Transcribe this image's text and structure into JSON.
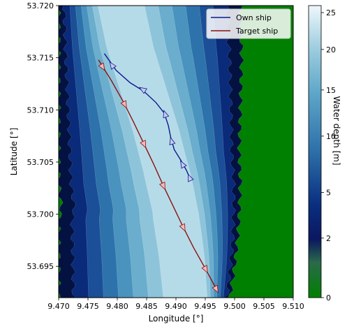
{
  "chart_data": {
    "type": "line",
    "xlabel": "Longitude [°]",
    "ylabel": "Latitude [°]",
    "xlim": [
      9.47,
      9.51
    ],
    "ylim": [
      53.692,
      53.72
    ],
    "xticks": [
      "9.470",
      "9.475",
      "9.480",
      "9.485",
      "9.490",
      "9.495",
      "9.500",
      "9.505",
      "9.510"
    ],
    "yticks": [
      "53.695",
      "53.700",
      "53.705",
      "53.710",
      "53.715",
      "53.720"
    ],
    "legend_position": "top-right",
    "series": [
      {
        "name": "Own ship",
        "color": "#0a1a8c",
        "marker_color": "#c8c8f0",
        "points": [
          [
            9.4778,
            53.7154
          ],
          [
            9.4798,
            53.7138
          ],
          [
            9.4822,
            53.7126
          ],
          [
            9.4845,
            53.7118
          ],
          [
            9.4866,
            53.7107
          ],
          [
            9.488,
            53.7097
          ],
          [
            9.4887,
            53.7085
          ],
          [
            9.4891,
            53.7074
          ],
          [
            9.4897,
            53.7062
          ],
          [
            9.4908,
            53.7052
          ],
          [
            9.4918,
            53.7042
          ],
          [
            9.4925,
            53.7033
          ]
        ],
        "arrows": [
          [
            9.4792,
            53.7142
          ],
          [
            9.4845,
            53.7119
          ],
          [
            9.4882,
            53.7095
          ],
          [
            9.4893,
            53.7069
          ],
          [
            9.4912,
            53.7047
          ],
          [
            9.4924,
            53.7034
          ]
        ]
      },
      {
        "name": "Target ship",
        "color": "#8b1010",
        "marker_color": "#f4b8b8",
        "points": [
          [
            9.4768,
            53.7148
          ],
          [
            9.479,
            53.7128
          ],
          [
            9.481,
            53.7108
          ],
          [
            9.4828,
            53.7088
          ],
          [
            9.4845,
            53.7068
          ],
          [
            9.4862,
            53.7048
          ],
          [
            9.4878,
            53.7028
          ],
          [
            9.4895,
            53.7008
          ],
          [
            9.4912,
            53.6988
          ],
          [
            9.493,
            53.6968
          ],
          [
            9.495,
            53.6948
          ],
          [
            9.497,
            53.6927
          ]
        ],
        "arrows": [
          [
            9.4774,
            53.7142
          ],
          [
            9.4812,
            53.7106
          ],
          [
            9.4845,
            53.7068
          ],
          [
            9.4878,
            53.7028
          ],
          [
            9.4912,
            53.6988
          ],
          [
            9.495,
            53.6948
          ],
          [
            9.4968,
            53.6929
          ]
        ]
      }
    ],
    "colorbar": {
      "label": "Water depth [m]",
      "ticks": [
        {
          "value": 0,
          "label": "0"
        },
        {
          "value": 2,
          "label": "2"
        },
        {
          "value": 5,
          "label": "5"
        },
        {
          "value": 10,
          "label": "10"
        },
        {
          "value": 15,
          "label": "15"
        },
        {
          "value": 20,
          "label": "20"
        },
        {
          "value": 25,
          "label": "25"
        }
      ],
      "range": [
        0,
        26
      ],
      "land_color": "#008000"
    },
    "channel": {
      "note_colors": [
        "#008000",
        "#041242",
        "#0a2a7a",
        "#1b4f97",
        "#2e72ab",
        "#4a93bf",
        "#6aadcd",
        "#8ec4da",
        "#b6dbe8"
      ],
      "west_edge": [
        [
          53.692,
          9.47
        ],
        [
          53.6995,
          9.47
        ],
        [
          53.7005,
          9.4705
        ],
        [
          53.703,
          9.47
        ],
        [
          53.707,
          9.47
        ],
        [
          53.71,
          9.47
        ],
        [
          53.715,
          9.47
        ],
        [
          53.718,
          9.47
        ],
        [
          53.72,
          9.47
        ]
      ],
      "east_edge": [
        [
          53.692,
          9.4992
        ],
        [
          53.695,
          9.5
        ],
        [
          53.6975,
          9.5005
        ],
        [
          53.7,
          9.5008
        ],
        [
          53.703,
          9.501
        ],
        [
          53.706,
          9.5008
        ],
        [
          53.71,
          9.501
        ],
        [
          53.715,
          9.5012
        ],
        [
          53.72,
          9.501
        ]
      ],
      "center": [
        [
          53.692,
          9.494
        ],
        [
          53.696,
          9.493
        ],
        [
          53.7,
          9.4915
        ],
        [
          53.704,
          9.4895
        ],
        [
          53.708,
          9.487
        ],
        [
          53.712,
          9.484
        ],
        [
          53.716,
          9.481
        ],
        [
          53.72,
          9.479
        ]
      ],
      "half_width": [
        [
          53.692,
          0.014
        ],
        [
          53.696,
          0.014
        ],
        [
          53.7,
          0.015
        ],
        [
          53.704,
          0.0155
        ],
        [
          53.708,
          0.016
        ],
        [
          53.712,
          0.015
        ],
        [
          53.716,
          0.0145
        ],
        [
          53.72,
          0.015
        ]
      ]
    }
  }
}
